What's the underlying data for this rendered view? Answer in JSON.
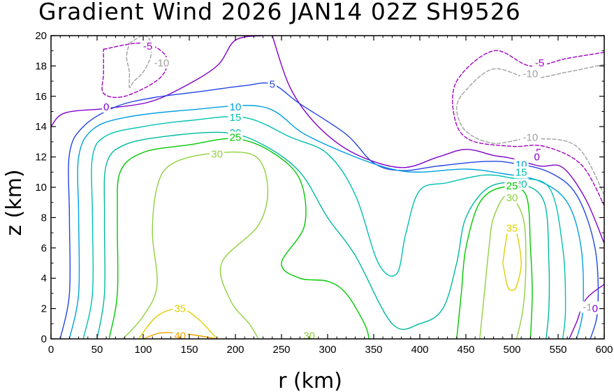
{
  "chart_data": {
    "type": "contour",
    "title": "Gradient Wind 2026 JAN14 02Z   SH9526",
    "xlabel": "r (km)",
    "ylabel": "z (km)",
    "xlim": [
      0,
      600
    ],
    "ylim": [
      0,
      20
    ],
    "x_ticks": [
      0,
      50,
      100,
      150,
      200,
      250,
      300,
      350,
      400,
      450,
      500,
      550,
      600
    ],
    "y_ticks": [
      0,
      2,
      4,
      6,
      8,
      10,
      12,
      14,
      16,
      18,
      20
    ],
    "levels": [
      {
        "value": -10,
        "label": "-10",
        "color": "#a0a0a0",
        "dashed": true,
        "paths": [
          [
            [
              85,
              19.5
            ],
            [
              100,
              20
            ],
            [
              108,
              19.6
            ],
            [
              108,
              18.6
            ],
            [
              100,
              17.6
            ],
            [
              90,
              17.0
            ],
            [
              85,
              16.6
            ],
            [
              85,
              17.6
            ],
            [
              82,
              18.6
            ],
            [
              85,
              19.5
            ]
          ],
          [
            [
              600,
              18.1
            ],
            [
              560,
              17.6
            ],
            [
              520,
              17.2
            ],
            [
              480,
              17.8
            ],
            [
              450,
              16.4
            ],
            [
              440,
              15.2
            ],
            [
              450,
              13.7
            ],
            [
              480,
              12.9
            ],
            [
              520,
              13.2
            ],
            [
              570,
              12.7
            ],
            [
              600,
              9.5
            ]
          ]
        ],
        "labels": [
          [
            120,
            18.2,
            "-10"
          ],
          [
            520,
            13.3,
            "-10"
          ],
          [
            520,
            17.5,
            "-10"
          ],
          [
            585,
            2.1,
            "-10"
          ]
        ]
      },
      {
        "value": -5,
        "label": "-5",
        "color": "#a000c0",
        "dashed": true,
        "paths": [
          [
            [
              57,
              19.1
            ],
            [
              100,
              19.5
            ],
            [
              125,
              18.6
            ],
            [
              118,
              17.2
            ],
            [
              80,
              16.0
            ],
            [
              57,
              16.2
            ],
            [
              57,
              17.5
            ],
            [
              57,
              19.1
            ]
          ],
          [
            [
              600,
              18.9
            ],
            [
              560,
              18.5
            ],
            [
              520,
              18.0
            ],
            [
              480,
              19.0
            ],
            [
              440,
              17.0
            ],
            [
              438,
              14.5
            ],
            [
              455,
              13.1
            ],
            [
              500,
              12.7
            ],
            [
              535,
              12.7
            ],
            [
              575,
              11.5
            ],
            [
              600,
              8.8
            ]
          ]
        ],
        "labels": [
          [
            105,
            19.3,
            "-5"
          ],
          [
            527,
            12.3,
            "-5"
          ],
          [
            530,
            18.2,
            "-5"
          ]
        ]
      },
      {
        "value": 0,
        "label": "0",
        "color": "#8000c8",
        "dashed": false,
        "paths": [
          [
            [
              0,
              14.0
            ],
            [
              15,
              14.9
            ],
            [
              60,
              15.2
            ],
            [
              105,
              15.6
            ],
            [
              140,
              16.5
            ],
            [
              180,
              18.0
            ],
            [
              200,
              19.7
            ],
            [
              230,
              20
            ]
          ],
          [
            [
              240,
              20
            ],
            [
              260,
              16.5
            ],
            [
              290,
              14.0
            ],
            [
              330,
              12.2
            ],
            [
              380,
              11.3
            ],
            [
              420,
              12.0
            ],
            [
              450,
              12.5
            ],
            [
              480,
              12.1
            ],
            [
              500,
              11.9
            ],
            [
              530,
              11.4
            ],
            [
              555,
              11.3
            ],
            [
              580,
              9.2
            ],
            [
              600,
              6.3
            ]
          ],
          [
            [
              600,
              3.6
            ],
            [
              580,
              2.6
            ],
            [
              570,
              1.1
            ],
            [
              562,
              0
            ]
          ]
        ],
        "labels": [
          [
            60,
            15.3,
            "0"
          ],
          [
            527,
            12.0,
            "0"
          ],
          [
            590,
            2.0,
            "0"
          ]
        ]
      },
      {
        "value": 5,
        "label": "5",
        "color": "#2244e0",
        "dashed": false,
        "paths": [
          [
            [
              10,
              0
            ],
            [
              20,
              3.0
            ],
            [
              20,
              8.0
            ],
            [
              20,
              12.2
            ],
            [
              35,
              14.0
            ],
            [
              70,
              15.3
            ],
            [
              110,
              15.9
            ],
            [
              160,
              16.3
            ],
            [
              210,
              16.7
            ],
            [
              240,
              16.8
            ],
            [
              270,
              15.5
            ],
            [
              320,
              13.5
            ],
            [
              350,
              11.6
            ],
            [
              380,
              11.1
            ],
            [
              420,
              11.4
            ],
            [
              470,
              11.7
            ],
            [
              500,
              11.6
            ],
            [
              540,
              11.0
            ],
            [
              570,
              9.5
            ],
            [
              590,
              6.0
            ],
            [
              593,
              2.0
            ],
            [
              585,
              0
            ]
          ]
        ],
        "labels": [
          [
            240,
            16.8,
            "5"
          ]
        ]
      },
      {
        "value": 10,
        "label": "10",
        "color": "#00a0e0",
        "dashed": false,
        "paths": [
          [
            [
              20,
              0
            ],
            [
              30,
              3.0
            ],
            [
              30,
              8.0
            ],
            [
              30,
              12.0
            ],
            [
              45,
              13.8
            ],
            [
              80,
              14.6
            ],
            [
              150,
              15.1
            ],
            [
              230,
              15.3
            ],
            [
              275,
              13.5
            ],
            [
              330,
              12.0
            ],
            [
              370,
              11.2
            ],
            [
              400,
              11.0
            ],
            [
              450,
              11.2
            ],
            [
              490,
              10.9
            ],
            [
              530,
              10.4
            ],
            [
              560,
              9.0
            ],
            [
              575,
              6.0
            ],
            [
              577,
              2.0
            ],
            [
              570,
              0
            ]
          ]
        ],
        "labels": [
          [
            200,
            15.3,
            "10"
          ],
          [
            510,
            11.5,
            "10"
          ]
        ]
      },
      {
        "value": 15,
        "label": "15",
        "color": "#00c0b0",
        "dashed": false,
        "paths": [
          [
            [
              35,
              0
            ],
            [
              45,
              3.0
            ],
            [
              45,
              8.0
            ],
            [
              45,
              12.0
            ],
            [
              60,
              13.4
            ],
            [
              100,
              14.0
            ],
            [
              150,
              14.4
            ],
            [
              210,
              14.6
            ],
            [
              260,
              13.3
            ],
            [
              300,
              12.2
            ],
            [
              330,
              9.5
            ],
            [
              355,
              5.0
            ],
            [
              375,
              4.3
            ],
            [
              385,
              7.0
            ],
            [
              400,
              9.8
            ],
            [
              430,
              10.3
            ],
            [
              470,
              10.8
            ],
            [
              500,
              10.6
            ],
            [
              540,
              10.0
            ],
            [
              555,
              6.0
            ],
            [
              558,
              2.0
            ],
            [
              555,
              0
            ]
          ]
        ],
        "labels": [
          [
            200,
            14.6,
            "15"
          ],
          [
            510,
            11.0,
            "15"
          ]
        ]
      },
      {
        "value": 20,
        "label": "20",
        "color": "#00b8a0",
        "dashed": false,
        "paths": [
          [
            [
              50,
              0
            ],
            [
              58,
              3.0
            ],
            [
              58,
              8.0
            ],
            [
              60,
              11.5
            ],
            [
              80,
              12.8
            ],
            [
              130,
              13.4
            ],
            [
              190,
              13.6
            ],
            [
              230,
              12.8
            ],
            [
              270,
              11.0
            ],
            [
              300,
              8.0
            ],
            [
              330,
              5.5
            ],
            [
              370,
              1.0
            ],
            [
              400,
              1.0
            ],
            [
              425,
              2.0
            ],
            [
              440,
              5.0
            ],
            [
              450,
              8.0
            ],
            [
              475,
              10.0
            ],
            [
              510,
              10.2
            ],
            [
              535,
              9.0
            ],
            [
              540,
              5.0
            ],
            [
              540,
              2.0
            ],
            [
              537,
              0
            ]
          ]
        ],
        "labels": [
          [
            200,
            13.6,
            "20"
          ],
          [
            510,
            10.2,
            "20"
          ]
        ]
      },
      {
        "value": 25,
        "label": "25",
        "color": "#00c800",
        "dashed": false,
        "paths": [
          [
            [
              63,
              0
            ],
            [
              72,
              3.0
            ],
            [
              72,
              8.0
            ],
            [
              75,
              11.0
            ],
            [
              100,
              12.3
            ],
            [
              150,
              12.8
            ],
            [
              200,
              13.2
            ],
            [
              240,
              12.3
            ],
            [
              270,
              10.5
            ],
            [
              275,
              7.5
            ],
            [
              250,
              5.0
            ],
            [
              270,
              4.0
            ],
            [
              300,
              3.8
            ],
            [
              320,
              3.0
            ],
            [
              340,
              1.0
            ],
            [
              345,
              0
            ]
          ],
          [
            [
              440,
              0
            ],
            [
              445,
              3.0
            ],
            [
              450,
              6.0
            ],
            [
              465,
              9.0
            ],
            [
              490,
              10.0
            ],
            [
              515,
              9.5
            ],
            [
              520,
              6.0
            ],
            [
              522,
              3.0
            ],
            [
              520,
              0
            ]
          ]
        ],
        "labels": [
          [
            200,
            13.3,
            "25"
          ],
          [
            500,
            10.1,
            "25"
          ]
        ]
      },
      {
        "value": 30,
        "label": "30",
        "color": "#90d040",
        "dashed": false,
        "paths": [
          [
            [
              78,
              0
            ],
            [
              100,
              1.5
            ],
            [
              115,
              3.5
            ],
            [
              110,
              7.0
            ],
            [
              115,
              10.0
            ],
            [
              130,
              11.5
            ],
            [
              170,
              12.2
            ],
            [
              220,
              12.1
            ],
            [
              235,
              10.0
            ],
            [
              225,
              7.5
            ],
            [
              185,
              5.0
            ],
            [
              195,
              2.5
            ],
            [
              215,
              1.0
            ],
            [
              225,
              0
            ]
          ],
          [
            [
              465,
              0
            ],
            [
              470,
              3.0
            ],
            [
              475,
              6.0
            ],
            [
              480,
              8.0
            ],
            [
              495,
              9.5
            ],
            [
              512,
              8.0
            ],
            [
              515,
              5.0
            ],
            [
              512,
              2.0
            ],
            [
              505,
              0
            ]
          ]
        ],
        "labels": [
          [
            180,
            12.2,
            "30"
          ],
          [
            500,
            9.3,
            "30"
          ],
          [
            280,
            0.2,
            "30"
          ]
        ]
      },
      {
        "value": 35,
        "label": "35",
        "color": "#e0d000",
        "dashed": false,
        "paths": [
          [
            [
              95,
              0
            ],
            [
              115,
              1.5
            ],
            [
              140,
              2.0
            ],
            [
              160,
              1.3
            ],
            [
              180,
              0
            ]
          ],
          [
            [
              490,
              5.0
            ],
            [
              495,
              7.0
            ],
            [
              500,
              7.5
            ],
            [
              505,
              7.0
            ],
            [
              510,
              5.0
            ],
            [
              505,
              3.5
            ],
            [
              500,
              3.2
            ],
            [
              495,
              3.5
            ],
            [
              490,
              5.0
            ]
          ]
        ],
        "labels": [
          [
            140,
            2.0,
            "35"
          ],
          [
            500,
            7.3,
            "35"
          ]
        ]
      },
      {
        "value": 40,
        "label": "40",
        "color": "#f0a000",
        "dashed": false,
        "paths": [
          [
            [
              100,
              0
            ],
            [
              120,
              0.4
            ],
            [
              150,
              0.3
            ],
            [
              180,
              0
            ]
          ]
        ],
        "labels": [
          [
            140,
            0.2,
            "40"
          ]
        ]
      }
    ]
  }
}
